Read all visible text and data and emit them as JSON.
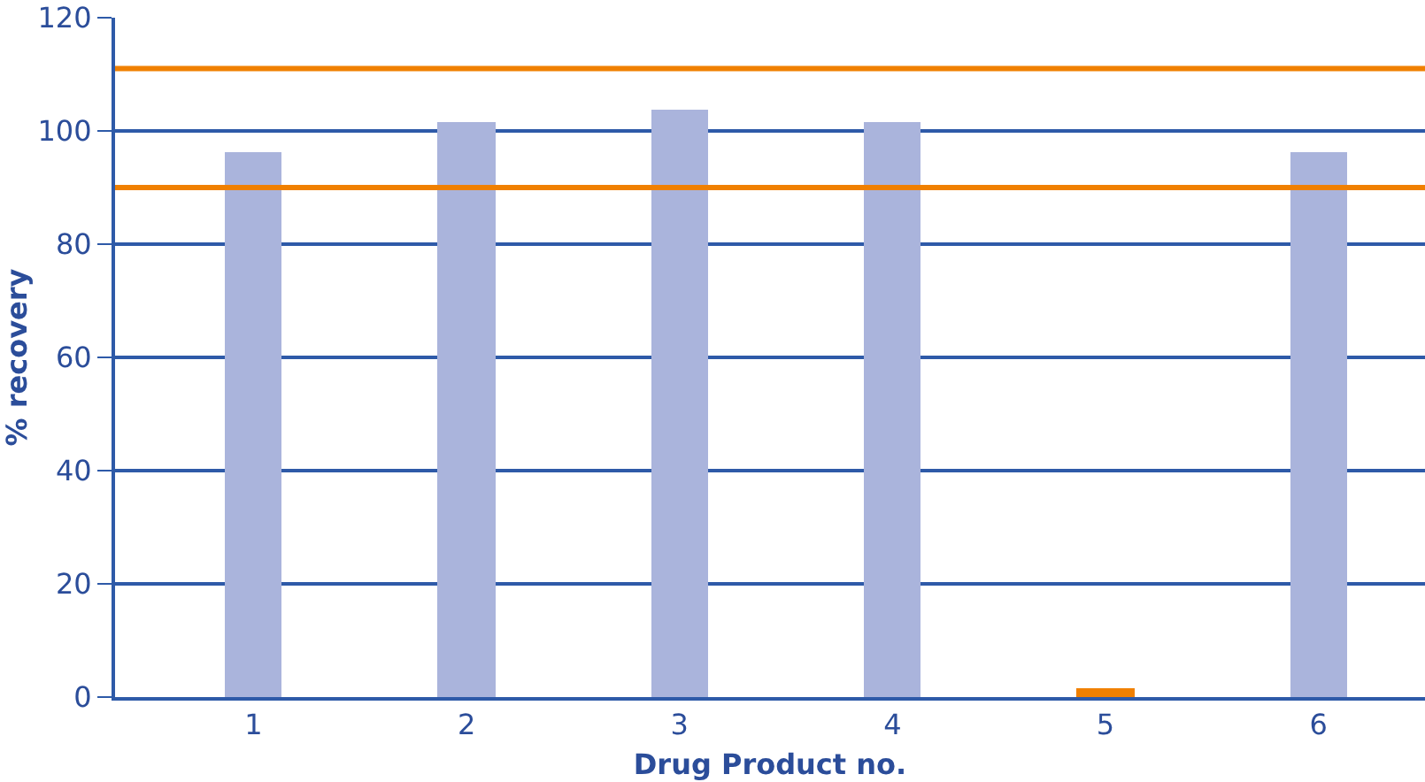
{
  "chart_data": {
    "type": "bar",
    "xlabel": "Drug Product no.",
    "ylabel": "% recovery",
    "categories": [
      "1",
      "2",
      "3",
      "4",
      "5",
      "6"
    ],
    "values": [
      96.3,
      101.7,
      103.9,
      101.7,
      1.7,
      96.3
    ],
    "colors": [
      "#aab4dc",
      "#aab4dc",
      "#aab4dc",
      "#aab4dc",
      "#f08000",
      "#aab4dc"
    ],
    "ylim": [
      0,
      120
    ],
    "yticks": [
      0,
      20,
      40,
      60,
      80,
      100,
      120
    ],
    "grid": "y",
    "ref_lines": [
      {
        "axis": "y",
        "value": 111,
        "color": "#f08000"
      },
      {
        "axis": "y",
        "value": 90,
        "color": "#f08000"
      }
    ]
  }
}
